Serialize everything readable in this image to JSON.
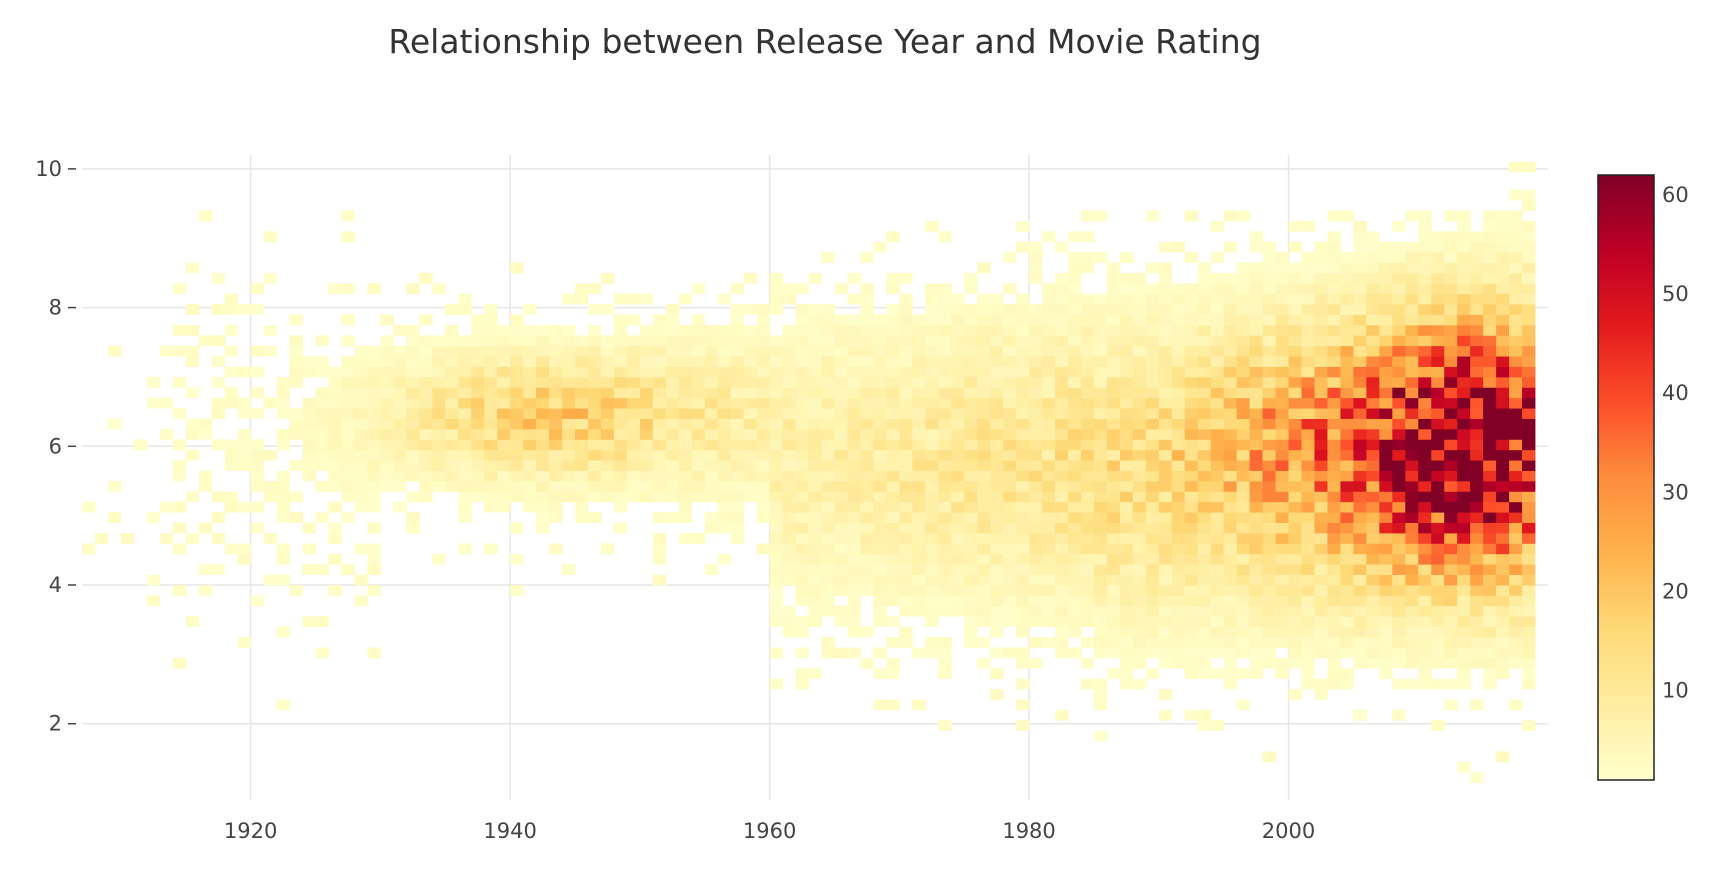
{
  "chart_data": {
    "type": "heatmap",
    "title": "Relationship between Release Year and Movie Rating",
    "xlabel": "",
    "ylabel": "",
    "xlim": [
      1907,
      1920.5
    ],
    "x_range": [
      1907,
      2020
    ],
    "y_range": [
      0.9,
      10.2
    ],
    "x_ticks": [
      "1920",
      "1940",
      "1960",
      "1980",
      "2000"
    ],
    "x_tick_values": [
      1920,
      1940,
      1960,
      1980,
      2000
    ],
    "y_ticks": [
      "2",
      "4",
      "6",
      "8",
      "10"
    ],
    "y_tick_values": [
      2,
      4,
      6,
      8,
      10
    ],
    "grid": true,
    "colorscale": [
      "#ffffcc",
      "#ffeda0",
      "#fed976",
      "#feb24c",
      "#fd8d3c",
      "#fc4e2a",
      "#e31a1c",
      "#bd0026",
      "#800026"
    ],
    "colorbar": {
      "min": 1,
      "max": 62,
      "ticks": [
        "10",
        "20",
        "30",
        "40",
        "50",
        "60"
      ],
      "tick_values": [
        10,
        20,
        30,
        40,
        50,
        60
      ]
    },
    "bin_size": {
      "x": 1,
      "y": 0.1
    },
    "density_regions": [
      {
        "x_center": 1945,
        "y_center": 6.4,
        "peak_count": 25
      },
      {
        "x_center": 2013,
        "y_center": 6.0,
        "peak_count": 62
      }
    ]
  }
}
